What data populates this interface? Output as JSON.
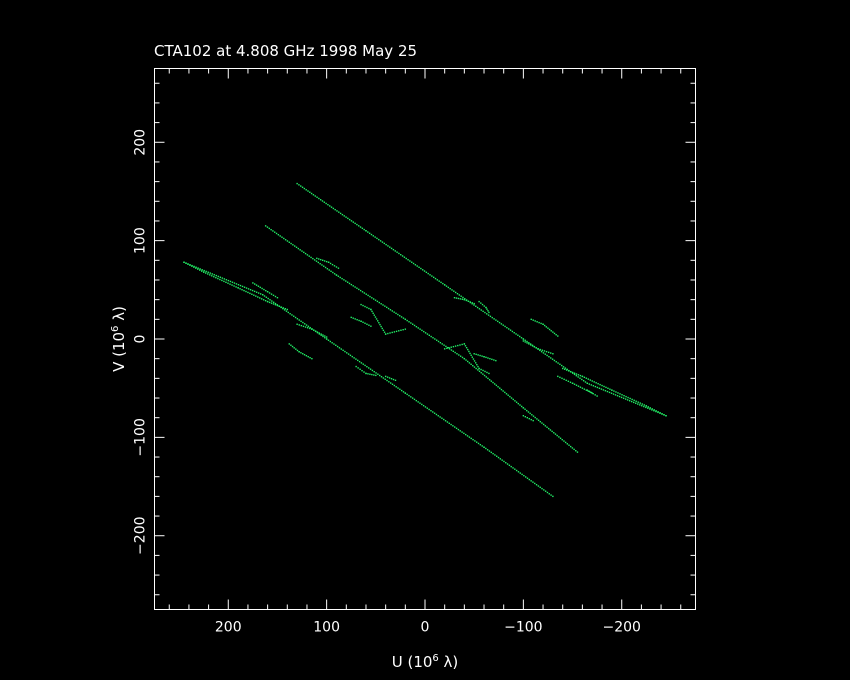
{
  "chart_data": {
    "type": "scatter",
    "title": "CTA102 at 4.808 GHz 1998 May 25",
    "xlabel": {
      "prefix": "U (10",
      "sup": "6",
      "suffix": " λ)"
    },
    "ylabel": {
      "prefix": "V (10",
      "sup": "6",
      "suffix": " λ)"
    },
    "xlim": [
      275,
      -275
    ],
    "ylim": [
      -275,
      275
    ],
    "x_ticks": [
      {
        "value": 200,
        "label": "200"
      },
      {
        "value": 100,
        "label": "100"
      },
      {
        "value": 0,
        "label": "0"
      },
      {
        "value": -100,
        "label": "−100"
      },
      {
        "value": -200,
        "label": "−200"
      }
    ],
    "y_ticks": [
      {
        "value": 200,
        "label": "200"
      },
      {
        "value": 100,
        "label": "100"
      },
      {
        "value": 0,
        "label": "0"
      },
      {
        "value": -100,
        "label": "−100"
      },
      {
        "value": -200,
        "label": "−200"
      }
    ],
    "grid": false,
    "colors": {
      "background": "#000000",
      "frame": "#ffffff",
      "points": "#22ee66"
    },
    "series": [
      {
        "segments": [
          {
            "points": [
              [
                130,
                158
              ],
              [
                60,
                110
              ],
              [
                -20,
                55
              ],
              [
                -100,
                0
              ],
              [
                -165,
                -45
              ],
              [
                -245,
                -78
              ]
            ]
          },
          {
            "points": [
              [
                -245,
                -78
              ],
              [
                -225,
                -68
              ],
              [
                -190,
                -52
              ],
              [
                -160,
                -38
              ],
              [
                -140,
                -30
              ]
            ]
          },
          {
            "points": [
              [
                -130,
                -15
              ],
              [
                -115,
                -10
              ],
              [
                -100,
                -2
              ]
            ]
          }
        ]
      },
      {
        "segments": [
          {
            "points": [
              [
                -130,
                -160
              ],
              [
                -60,
                -110
              ],
              [
                20,
                -55
              ],
              [
                100,
                0
              ],
              [
                165,
                45
              ],
              [
                245,
                78
              ]
            ]
          },
          {
            "points": [
              [
                245,
                78
              ],
              [
                225,
                68
              ],
              [
                190,
                52
              ],
              [
                160,
                38
              ],
              [
                140,
                30
              ]
            ]
          },
          {
            "points": [
              [
                130,
                15
              ],
              [
                115,
                10
              ],
              [
                100,
                2
              ]
            ]
          }
        ]
      },
      {
        "segments": [
          {
            "points": [
              [
                162,
                115
              ],
              [
                90,
                65
              ],
              [
                20,
                20
              ],
              [
                -40,
                -20
              ],
              [
                -100,
                -70
              ],
              [
                -155,
                -115
              ]
            ]
          }
        ]
      },
      {
        "segments": [
          {
            "points": [
              [
                110,
                82
              ],
              [
                98,
                78
              ],
              [
                88,
                72
              ]
            ]
          },
          {
            "points": [
              [
                175,
                57
              ],
              [
                160,
                48
              ],
              [
                150,
                42
              ]
            ]
          },
          {
            "points": [
              [
                -100,
                -78
              ],
              [
                -110,
                -83
              ]
            ]
          },
          {
            "points": [
              [
                -165,
                -52
              ],
              [
                -175,
                -58
              ]
            ]
          },
          {
            "points": [
              [
                -170,
                -55
              ],
              [
                -150,
                -45
              ],
              [
                -135,
                -38
              ]
            ]
          },
          {
            "points": [
              [
                -20,
                -10
              ],
              [
                -40,
                -5
              ],
              [
                -55,
                -30
              ],
              [
                -65,
                -35
              ]
            ]
          },
          {
            "points": [
              [
                20,
                10
              ],
              [
                40,
                5
              ],
              [
                55,
                30
              ],
              [
                65,
                35
              ]
            ]
          }
        ]
      },
      {
        "segments": [
          {
            "points": [
              [
                75,
                22
              ],
              [
                65,
                18
              ],
              [
                55,
                13
              ]
            ]
          },
          {
            "points": [
              [
                -50,
                -15
              ],
              [
                -60,
                -18
              ],
              [
                -72,
                -22
              ]
            ]
          },
          {
            "points": [
              [
                -108,
                20
              ],
              [
                -120,
                15
              ],
              [
                -135,
                3
              ]
            ]
          },
          {
            "points": [
              [
                138,
                -5
              ],
              [
                128,
                -13
              ],
              [
                115,
                -20
              ]
            ]
          },
          {
            "points": [
              [
                70,
                -28
              ],
              [
                60,
                -35
              ],
              [
                50,
                -37
              ]
            ]
          },
          {
            "points": [
              [
                -30,
                42
              ],
              [
                -40,
                40
              ],
              [
                -50,
                36
              ]
            ]
          },
          {
            "points": [
              [
                -55,
                38
              ],
              [
                -62,
                32
              ],
              [
                -65,
                27
              ]
            ]
          },
          {
            "points": [
              [
                40,
                -38
              ],
              [
                30,
                -42
              ]
            ]
          }
        ]
      }
    ]
  }
}
